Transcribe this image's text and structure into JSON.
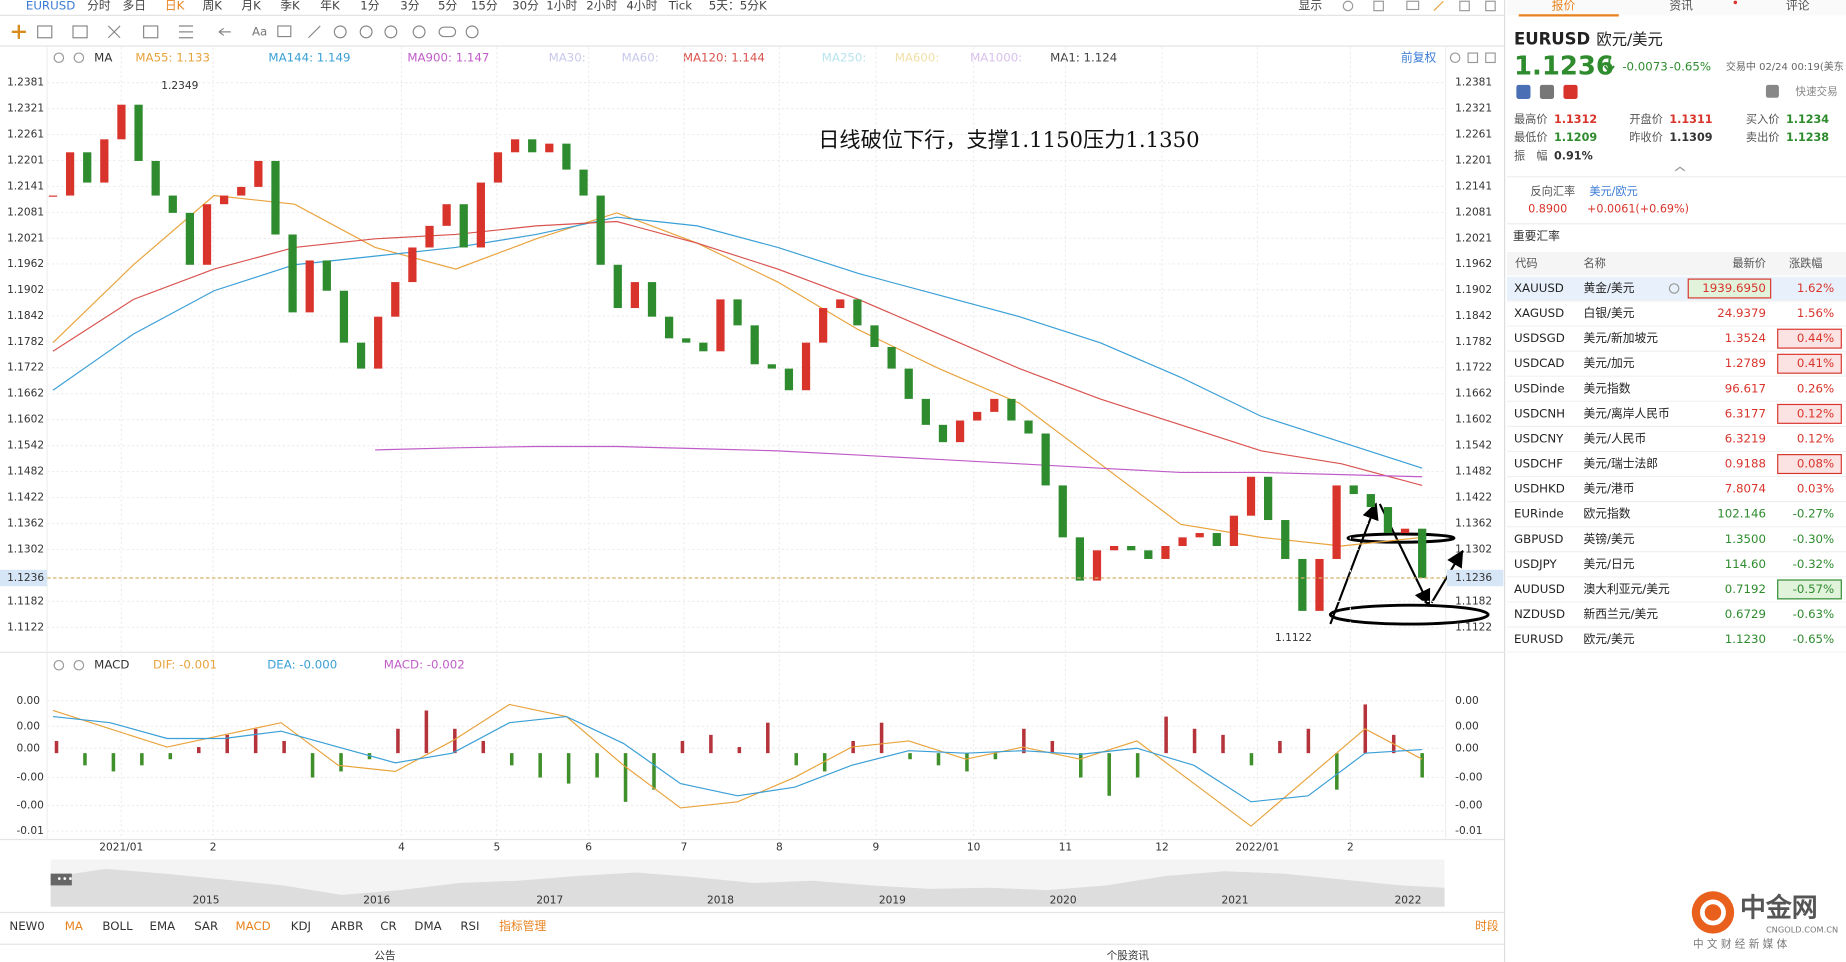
{
  "toolbar": {
    "symbol": "EURUSD",
    "periods": [
      "分时",
      "多日",
      "日K",
      "周K",
      "月K",
      "季K",
      "年K",
      "1分",
      "3分",
      "5分",
      "15分",
      "30分",
      "1小时",
      "2小时",
      "4小时",
      "Tick",
      "5天：5分K"
    ],
    "active_period": 2,
    "display": "显示"
  },
  "chart_data": [
    {
      "type": "candlestick",
      "indicator": "MA",
      "adjust": "前复权",
      "annotation": "日线破位下行，支撑1.1150压力1.1350",
      "legend": [
        {
          "label": "MA55: 1.133",
          "color": "#e8a33c"
        },
        {
          "label": "MA144: 1.149",
          "color": "#3a9fd6"
        },
        {
          "label": "MA900: 1.147",
          "color": "#c05cc8"
        },
        {
          "label": "MA30:",
          "color": "#c8c8ec"
        },
        {
          "label": "MA60:",
          "color": "#c8c8ec"
        },
        {
          "label": "MA120: 1.144",
          "color": "#d9534f"
        },
        {
          "label": "MA250:",
          "color": "#b8e4ec"
        },
        {
          "label": "MA600:",
          "color": "#f0e0a8"
        },
        {
          "label": "MA1000:",
          "color": "#d8c0ec"
        },
        {
          "label": "MA1: 1.124",
          "color": "#444444"
        }
      ],
      "closes": [
        1.212,
        1.222,
        1.215,
        1.225,
        1.233,
        1.22,
        1.212,
        1.208,
        1.196,
        1.21,
        1.212,
        1.214,
        1.22,
        1.203,
        1.185,
        1.197,
        1.19,
        1.178,
        1.172,
        1.184,
        1.192,
        1.2,
        1.205,
        1.21,
        1.2,
        1.215,
        1.222,
        1.225,
        1.222,
        1.224,
        1.218,
        1.212,
        1.196,
        1.186,
        1.192,
        1.184,
        1.179,
        1.178,
        1.176,
        1.188,
        1.182,
        1.173,
        1.172,
        1.167,
        1.178,
        1.186,
        1.188,
        1.182,
        1.177,
        1.172,
        1.165,
        1.159,
        1.155,
        1.16,
        1.162,
        1.165,
        1.16,
        1.157,
        1.145,
        1.133,
        1.123,
        1.13,
        1.131,
        1.13,
        1.128,
        1.131,
        1.133,
        1.134,
        1.131,
        1.138,
        1.147,
        1.137,
        1.128,
        1.116,
        1.128,
        1.145,
        1.143,
        1.14,
        1.134,
        1.135,
        1.1236
      ],
      "up_color": "#d9342b",
      "down_color": "#2e8b2e",
      "series": [
        {
          "color": "#e8a33c",
          "values": [
            1.178,
            1.196,
            1.212,
            1.21,
            1.2,
            1.195,
            1.202,
            1.208,
            1.201,
            1.192,
            1.181,
            1.172,
            1.164,
            1.15,
            1.136,
            1.133,
            1.131,
            1.133
          ]
        },
        {
          "color": "#3a9fd6",
          "values": [
            1.167,
            1.18,
            1.19,
            1.196,
            1.198,
            1.2,
            1.203,
            1.207,
            1.205,
            1.2,
            1.194,
            1.189,
            1.184,
            1.178,
            1.17,
            1.161,
            1.155,
            1.149
          ]
        },
        {
          "color": "#d9534f",
          "values": [
            1.176,
            1.188,
            1.195,
            1.2,
            1.202,
            1.203,
            1.205,
            1.206,
            1.201,
            1.195,
            1.188,
            1.18,
            1.172,
            1.165,
            1.159,
            1.153,
            1.15,
            1.145
          ]
        },
        {
          "color": "#c05cc8",
          "values": [
            null,
            null,
            null,
            null,
            1.1532,
            1.1537,
            1.154,
            1.154,
            1.1535,
            1.153,
            1.152,
            1.151,
            1.15,
            1.149,
            1.148,
            1.148,
            1.1475,
            1.147
          ]
        }
      ],
      "ylim": [
        1.1067,
        1.2463
      ],
      "yticks": [
        1.2381,
        1.2321,
        1.2261,
        1.2201,
        1.2141,
        1.2081,
        1.2021,
        1.1962,
        1.1902,
        1.1842,
        1.1782,
        1.1722,
        1.1662,
        1.1602,
        1.1542,
        1.1482,
        1.1422,
        1.1362,
        1.1302,
        1.1182,
        1.1122
      ],
      "current_price": 1.1236,
      "high_label": 1.2349,
      "low_label": 1.1122,
      "x_labels": [
        "2021/01",
        "2",
        "4",
        "5",
        "6",
        "7",
        "8",
        "9",
        "10",
        "11",
        "12",
        "2022/01",
        "2"
      ],
      "grid": true
    },
    {
      "type": "macd",
      "title": "MACD",
      "legend": [
        {
          "label": "DIF: -0.001",
          "color": "#e8a33c"
        },
        {
          "label": "DEA: -0.000",
          "color": "#3a9fd6"
        },
        {
          "label": "MACD: -0.002",
          "color": "#c05cc8"
        }
      ],
      "ylim": [
        -0.0068,
        0.0077
      ],
      "yticks": [
        {
          "value": 0.0043,
          "label": "0.00"
        },
        {
          "value": 0.0022,
          "label": "0.00"
        },
        {
          "value": 0.0004,
          "label": "0.00"
        },
        {
          "value": -0.002,
          "label": "-0.00"
        },
        {
          "value": -0.0043,
          "label": "-0.00"
        },
        {
          "value": -0.0064,
          "label": "-0.01"
        }
      ],
      "histogram": [
        0.001,
        -0.001,
        -0.0015,
        -0.001,
        -0.0005,
        0.0005,
        0.0015,
        0.002,
        0.001,
        -0.002,
        -0.0015,
        -0.0005,
        0.002,
        0.0035,
        0.002,
        0.001,
        -0.001,
        -0.002,
        -0.0025,
        -0.002,
        -0.004,
        -0.003,
        0.001,
        0.0015,
        0.0005,
        0.0025,
        -0.001,
        -0.0015,
        0.001,
        0.0025,
        -0.0005,
        -0.001,
        -0.0015,
        -0.0005,
        0.002,
        0.001,
        -0.002,
        -0.0035,
        -0.002,
        0.003,
        0.002,
        0.0015,
        -0.001,
        0.001,
        0.002,
        -0.003,
        0.004,
        0.0015,
        -0.002
      ],
      "up_color": "#b5333a",
      "down_color": "#3f8f2a",
      "series": [
        {
          "color": "#e8a33c",
          "values": [
            0.0035,
            0.002,
            0.0005,
            0.0015,
            0.0025,
            -0.001,
            -0.0015,
            0.001,
            0.004,
            0.003,
            -0.001,
            -0.0045,
            -0.004,
            -0.002,
            0.0005,
            0.001,
            -0.0005,
            0.0005,
            -0.0005,
            0.001,
            -0.0025,
            -0.006,
            -0.002,
            0.002,
            -0.0005
          ]
        },
        {
          "color": "#3a9fd6",
          "values": [
            0.003,
            0.0025,
            0.0012,
            0.0012,
            0.0018,
            0.0005,
            -0.0008,
            0,
            0.0025,
            0.003,
            0.0008,
            -0.0025,
            -0.0035,
            -0.0028,
            -0.001,
            0.0002,
            0,
            0.0002,
            -0.0001,
            0.0004,
            -0.001,
            -0.004,
            -0.0035,
            0,
            0.0003
          ]
        }
      ]
    }
  ],
  "navigator": {
    "years": [
      2015,
      2016,
      2017,
      2018,
      2019,
      2020,
      2021,
      2022
    ]
  },
  "indicator_tabs": [
    {
      "label": "NEW0"
    },
    {
      "label": "MA",
      "active": true
    },
    {
      "label": "BOLL"
    },
    {
      "label": "EMA"
    },
    {
      "label": "SAR"
    },
    {
      "label": "MACD",
      "active": true
    },
    {
      "label": "KDJ"
    },
    {
      "label": "ARBR"
    },
    {
      "label": "CR"
    },
    {
      "label": "DMA"
    },
    {
      "label": "RSI"
    },
    {
      "label": "指标管理",
      "active": true
    }
  ],
  "period_button": "时段",
  "status_bar": [
    "公告",
    "个股资讯"
  ],
  "quote_panel": {
    "tabs": [
      "报价",
      "资讯",
      "评论"
    ],
    "symbol": "EURUSD",
    "name": "欧元/美元",
    "price": "1.1236",
    "change": "-0.0073",
    "change_pct": "-0.65%",
    "status": "交易中 02/24 00:19(美东",
    "quick_trade": "快速交易",
    "stats": [
      {
        "label": "最高价",
        "value": "1.1312",
        "color": "#d9342b"
      },
      {
        "label": "开盘价",
        "value": "1.1311",
        "color": "#d9342b"
      },
      {
        "label": "买入价",
        "value": "1.1234",
        "color": "#2e8b2e"
      },
      {
        "label": "最低价",
        "value": "1.1209",
        "color": "#2e8b2e"
      },
      {
        "label": "昨收价",
        "value": "1.1309",
        "color": "#333333"
      },
      {
        "label": "卖出价",
        "value": "1.1238",
        "color": "#2e8b2e"
      },
      {
        "label": "振　幅",
        "value": "0.91%",
        "color": "#333333"
      }
    ],
    "reverse": {
      "label": "反向汇率",
      "pair": "美元/欧元",
      "price": "0.8900",
      "change": "+0.0061(+0.69%)"
    },
    "section": "重要汇率",
    "table": {
      "header": [
        "代码",
        "名称",
        "最新价",
        "涨跌幅"
      ],
      "rows": [
        {
          "cells": [
            "XAUUSD",
            "黄金/美元",
            "1939.6950",
            "1.62%"
          ],
          "selected": true,
          "flash": "price"
        },
        {
          "cells": [
            "XAGUSD",
            "白银/美元",
            "24.9379",
            "1.56%"
          ]
        },
        {
          "cells": [
            "USDSGD",
            "美元/新加坡元",
            "1.3524",
            "0.44%"
          ],
          "flash": "change"
        },
        {
          "cells": [
            "USDCAD",
            "美元/加元",
            "1.2789",
            "0.41%"
          ],
          "flash": "change"
        },
        {
          "cells": [
            "USDinde",
            "美元指数",
            "96.617",
            "0.26%"
          ]
        },
        {
          "cells": [
            "USDCNH",
            "美元/离岸人民币",
            "6.3177",
            "0.12%"
          ],
          "flash": "change"
        },
        {
          "cells": [
            "USDCNY",
            "美元/人民币",
            "6.3219",
            "0.12%"
          ]
        },
        {
          "cells": [
            "USDCHF",
            "美元/瑞士法郎",
            "0.9188",
            "0.08%"
          ],
          "flash": "change"
        },
        {
          "cells": [
            "USDHKD",
            "美元/港币",
            "7.8074",
            "0.03%"
          ]
        },
        {
          "cells": [
            "EURinde",
            "欧元指数",
            "102.146",
            "-0.27%"
          ]
        },
        {
          "cells": [
            "GBPUSD",
            "英镑/美元",
            "1.3500",
            "-0.30%"
          ]
        },
        {
          "cells": [
            "USDJPY",
            "美元/日元",
            "114.60",
            "-0.32%"
          ]
        },
        {
          "cells": [
            "AUDUSD",
            "澳大利亚元/美元",
            "0.7192",
            "-0.57%"
          ],
          "flash": "change"
        },
        {
          "cells": [
            "NZDUSD",
            "新西兰元/美元",
            "0.6729",
            "-0.63%"
          ]
        },
        {
          "cells": [
            "EURUSD",
            "欧元/美元",
            "1.1230",
            "-0.65%"
          ]
        }
      ]
    }
  },
  "watermark": {
    "logo": "中金网",
    "domain": "CNGOLD.COM.CN",
    "slogan": "中 文 财 经 新 媒 体"
  }
}
